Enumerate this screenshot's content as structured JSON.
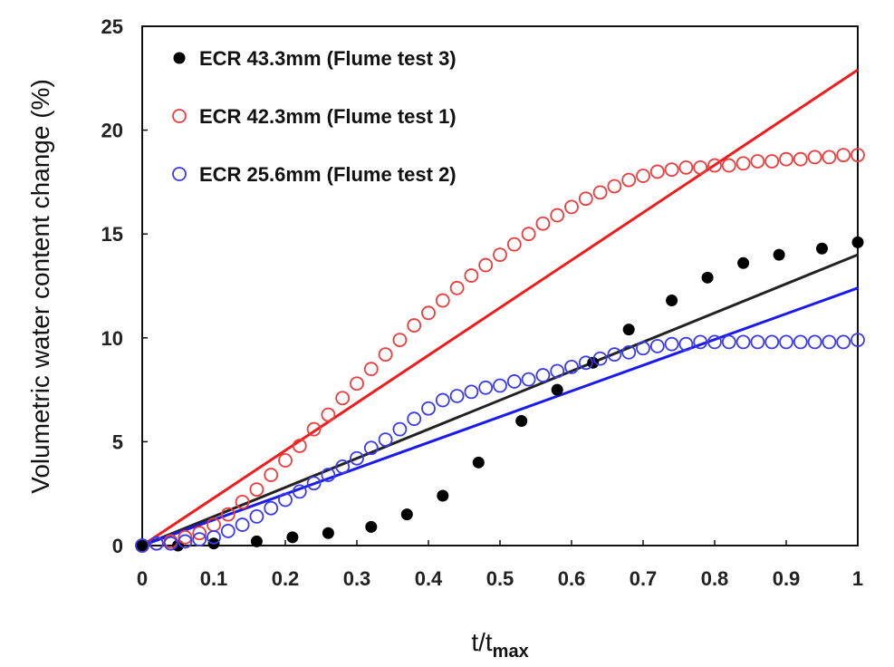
{
  "chart_data": {
    "type": "scatter",
    "xlabel": "t/t",
    "xlabel_sub": "max",
    "ylabel": "Volumetric water content change (%)",
    "xlim": [
      0,
      1
    ],
    "ylim": [
      0,
      25
    ],
    "xticks": [
      "0",
      "0.1",
      "0.2",
      "0.3",
      "0.4",
      "0.5",
      "0.6",
      "0.7",
      "0.8",
      "0.9",
      "1"
    ],
    "yticks": [
      "0",
      "5",
      "10",
      "15",
      "20",
      "25"
    ],
    "grid": false,
    "legend_position": "top-left",
    "series": [
      {
        "name": "ECR 43.3mm (Flume test 3)",
        "marker": "filled-circle",
        "color": "#000000",
        "points": [
          [
            0.0,
            0.0
          ],
          [
            0.05,
            0.0
          ],
          [
            0.1,
            0.1
          ],
          [
            0.16,
            0.2
          ],
          [
            0.21,
            0.4
          ],
          [
            0.26,
            0.6
          ],
          [
            0.32,
            0.9
          ],
          [
            0.37,
            1.5
          ],
          [
            0.42,
            2.4
          ],
          [
            0.47,
            4.0
          ],
          [
            0.53,
            6.0
          ],
          [
            0.58,
            7.5
          ],
          [
            0.63,
            8.8
          ],
          [
            0.68,
            10.4
          ],
          [
            0.74,
            11.8
          ],
          [
            0.79,
            12.9
          ],
          [
            0.84,
            13.6
          ],
          [
            0.89,
            14.0
          ],
          [
            0.95,
            14.3
          ],
          [
            1.0,
            14.6
          ]
        ]
      },
      {
        "name": "ECR 42.3mm (Flume test 1)",
        "marker": "open-circle",
        "color": "#ee3b3b",
        "points": [
          [
            0.0,
            0.0
          ],
          [
            0.02,
            0.1
          ],
          [
            0.04,
            0.2
          ],
          [
            0.06,
            0.4
          ],
          [
            0.08,
            0.6
          ],
          [
            0.1,
            1.0
          ],
          [
            0.12,
            1.5
          ],
          [
            0.14,
            2.1
          ],
          [
            0.16,
            2.7
          ],
          [
            0.18,
            3.4
          ],
          [
            0.2,
            4.1
          ],
          [
            0.22,
            4.8
          ],
          [
            0.24,
            5.6
          ],
          [
            0.26,
            6.3
          ],
          [
            0.28,
            7.1
          ],
          [
            0.3,
            7.8
          ],
          [
            0.32,
            8.5
          ],
          [
            0.34,
            9.2
          ],
          [
            0.36,
            9.9
          ],
          [
            0.38,
            10.6
          ],
          [
            0.4,
            11.2
          ],
          [
            0.42,
            11.8
          ],
          [
            0.44,
            12.4
          ],
          [
            0.46,
            13.0
          ],
          [
            0.48,
            13.5
          ],
          [
            0.5,
            14.0
          ],
          [
            0.52,
            14.5
          ],
          [
            0.54,
            15.0
          ],
          [
            0.56,
            15.5
          ],
          [
            0.58,
            15.9
          ],
          [
            0.6,
            16.3
          ],
          [
            0.62,
            16.7
          ],
          [
            0.64,
            17.0
          ],
          [
            0.66,
            17.3
          ],
          [
            0.68,
            17.6
          ],
          [
            0.7,
            17.8
          ],
          [
            0.72,
            18.0
          ],
          [
            0.74,
            18.1
          ],
          [
            0.76,
            18.2
          ],
          [
            0.78,
            18.2
          ],
          [
            0.8,
            18.3
          ],
          [
            0.82,
            18.3
          ],
          [
            0.84,
            18.4
          ],
          [
            0.86,
            18.5
          ],
          [
            0.88,
            18.5
          ],
          [
            0.9,
            18.6
          ],
          [
            0.92,
            18.6
          ],
          [
            0.94,
            18.7
          ],
          [
            0.96,
            18.7
          ],
          [
            0.98,
            18.8
          ],
          [
            1.0,
            18.8
          ]
        ]
      },
      {
        "name": "ECR 25.6mm (Flume test 2)",
        "marker": "open-circle",
        "color": "#3a3aee",
        "points": [
          [
            0.0,
            0.0
          ],
          [
            0.02,
            0.1
          ],
          [
            0.04,
            0.1
          ],
          [
            0.06,
            0.2
          ],
          [
            0.08,
            0.3
          ],
          [
            0.1,
            0.4
          ],
          [
            0.12,
            0.7
          ],
          [
            0.14,
            1.0
          ],
          [
            0.16,
            1.4
          ],
          [
            0.18,
            1.8
          ],
          [
            0.2,
            2.2
          ],
          [
            0.22,
            2.6
          ],
          [
            0.24,
            3.0
          ],
          [
            0.26,
            3.4
          ],
          [
            0.28,
            3.8
          ],
          [
            0.3,
            4.2
          ],
          [
            0.32,
            4.7
          ],
          [
            0.34,
            5.1
          ],
          [
            0.36,
            5.6
          ],
          [
            0.38,
            6.1
          ],
          [
            0.4,
            6.6
          ],
          [
            0.42,
            7.0
          ],
          [
            0.44,
            7.2
          ],
          [
            0.46,
            7.4
          ],
          [
            0.48,
            7.6
          ],
          [
            0.5,
            7.7
          ],
          [
            0.52,
            7.9
          ],
          [
            0.54,
            8.0
          ],
          [
            0.56,
            8.2
          ],
          [
            0.58,
            8.4
          ],
          [
            0.6,
            8.6
          ],
          [
            0.62,
            8.8
          ],
          [
            0.64,
            9.0
          ],
          [
            0.66,
            9.2
          ],
          [
            0.68,
            9.3
          ],
          [
            0.7,
            9.5
          ],
          [
            0.72,
            9.6
          ],
          [
            0.74,
            9.7
          ],
          [
            0.76,
            9.7
          ],
          [
            0.78,
            9.8
          ],
          [
            0.8,
            9.8
          ],
          [
            0.82,
            9.8
          ],
          [
            0.84,
            9.8
          ],
          [
            0.86,
            9.8
          ],
          [
            0.88,
            9.8
          ],
          [
            0.9,
            9.8
          ],
          [
            0.92,
            9.8
          ],
          [
            0.94,
            9.8
          ],
          [
            0.96,
            9.8
          ],
          [
            0.98,
            9.8
          ],
          [
            1.0,
            9.9
          ]
        ]
      }
    ],
    "fit_lines": [
      {
        "color": "#ee1c1c",
        "from": [
          0,
          0
        ],
        "to": [
          1,
          22.9
        ]
      },
      {
        "color": "#222222",
        "from": [
          0,
          0
        ],
        "to": [
          1,
          14.0
        ]
      },
      {
        "color": "#1a1aee",
        "from": [
          0,
          0
        ],
        "to": [
          1,
          12.4
        ]
      }
    ]
  }
}
